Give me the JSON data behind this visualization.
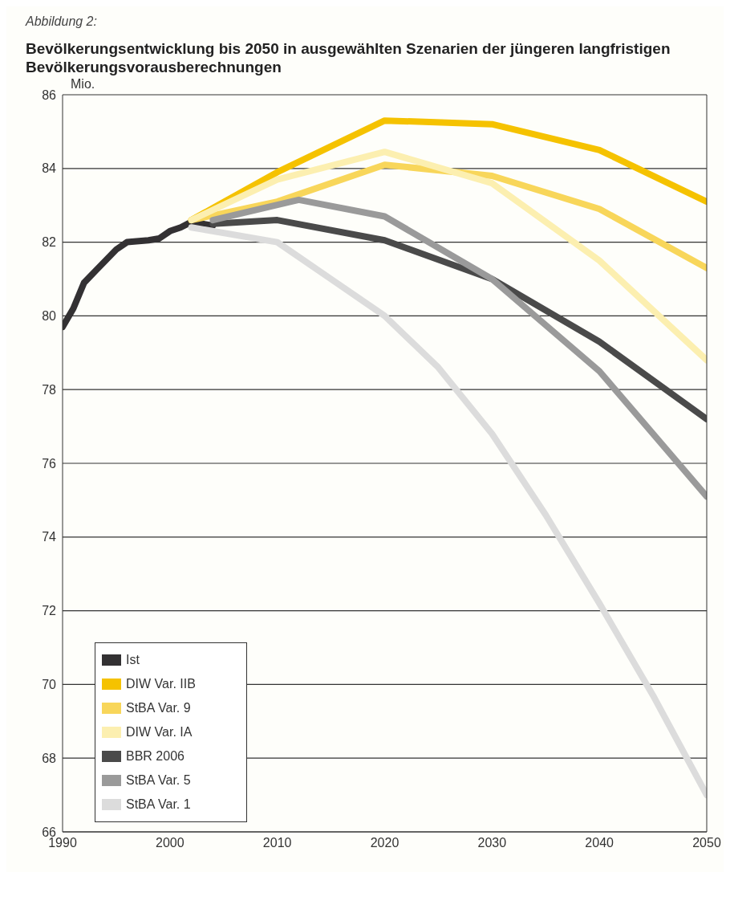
{
  "chart_data": {
    "type": "line",
    "title": "Bevölkerungsentwicklung bis 2050 in ausgewählten Szenarien der jüngeren langfristigen Bevölkerungsvorausberechnungen",
    "annotations": [
      "Abbildung 2:"
    ],
    "ylabel": "Mio.",
    "xlim": [
      1990,
      2050
    ],
    "xticks": [
      1990,
      2000,
      2010,
      2020,
      2030,
      2040,
      2050
    ],
    "ylim": [
      66,
      86
    ],
    "yticks": [
      66,
      68,
      70,
      72,
      74,
      76,
      78,
      80,
      82,
      84,
      86
    ],
    "grid": "y",
    "legend": "bottom left",
    "marker": "none",
    "line_style": "solid",
    "series": [
      {
        "name": "Ist",
        "color": "#333133",
        "x": [
          1990,
          1991,
          1992,
          1993,
          1994,
          1995,
          1996,
          1998,
          1999,
          2000,
          2001,
          2002,
          2003,
          2004
        ],
        "values": [
          79.7,
          80.2,
          80.9,
          81.2,
          81.5,
          81.8,
          82.0,
          82.05,
          82.1,
          82.3,
          82.4,
          82.55,
          82.5,
          82.45
        ]
      },
      {
        "name": "DIW Var. IIB",
        "color": "#f5c200",
        "x": [
          2002,
          2010,
          2020,
          2030,
          2040,
          2050
        ],
        "values": [
          82.6,
          83.9,
          85.3,
          85.2,
          84.5,
          83.1
        ]
      },
      {
        "name": "StBA Var. 9",
        "color": "#f8d65a",
        "x": [
          2002,
          2010,
          2020,
          2030,
          2040,
          2050
        ],
        "values": [
          82.6,
          83.1,
          84.1,
          83.8,
          82.9,
          81.3
        ]
      },
      {
        "name": "DIW Var. IA",
        "color": "#fcefb0",
        "x": [
          2002,
          2010,
          2020,
          2030,
          2040,
          2050
        ],
        "values": [
          82.6,
          83.7,
          84.45,
          83.6,
          81.5,
          78.8
        ]
      },
      {
        "name": "BBR 2006",
        "color": "#4a4a4a",
        "x": [
          2004,
          2010,
          2020,
          2030,
          2040,
          2050
        ],
        "values": [
          82.5,
          82.6,
          82.05,
          81.0,
          79.3,
          77.2
        ]
      },
      {
        "name": "StBA Var. 5",
        "color": "#9a9a9a",
        "x": [
          2004,
          2012,
          2020,
          2030,
          2040,
          2050
        ],
        "values": [
          82.6,
          83.15,
          82.7,
          81.0,
          78.5,
          75.1
        ]
      },
      {
        "name": "StBA Var. 1",
        "color": "#dcdcdc",
        "x": [
          2002,
          2010,
          2015,
          2020,
          2025,
          2030,
          2035,
          2040,
          2045,
          2050
        ],
        "values": [
          82.4,
          82.0,
          81.0,
          80.0,
          78.6,
          76.8,
          74.6,
          72.2,
          69.7,
          67.0
        ]
      }
    ]
  }
}
